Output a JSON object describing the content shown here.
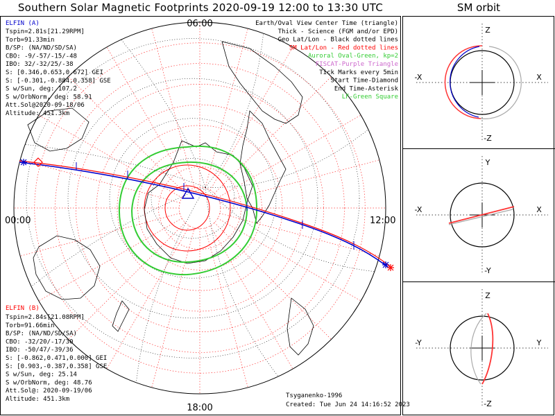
{
  "header": {
    "title": "Southern Solar Magnetic Footprints 2020-09-19 12:00 to 13:30 UTC",
    "orbit_title": "SM orbit"
  },
  "clock": {
    "top": "06:00",
    "left": "00:00",
    "right": "12:00",
    "bottom": "18:00"
  },
  "legend": {
    "items": [
      {
        "text": "Earth/Oval View Center Time (triangle)",
        "color": "#000000"
      },
      {
        "text": "Thick - Science (FGM and/or EPD)",
        "color": "#000000"
      },
      {
        "text": "Geo Lat/Lon - Black dotted lines",
        "color": "#000000"
      },
      {
        "text": "SM Lat/Lon - Red dotted lines",
        "color": "#ff0000"
      },
      {
        "text": "Auroral Oval-Green, kp=2",
        "color": "#33cc33"
      },
      {
        "text": "FISCAT-Purple Triangle",
        "color": "#cc66cc"
      },
      {
        "text": "Tick Marks every 5min",
        "color": "#000000"
      },
      {
        "text": "Start Time-Diamond",
        "color": "#000000"
      },
      {
        "text": "End Time-Asterisk",
        "color": "#000000"
      },
      {
        "text": "LF-Green Square",
        "color": "#33cc33"
      }
    ]
  },
  "elfin_a": {
    "name": "ELFIN (A)",
    "color": "#0000cc",
    "lines": [
      "Tspin=2.81s[21.29RPM]",
      "Torb=91.33min",
      "B/SP: (NA/ND/SD/SA)",
      "CBO: -9/-57/-15/-48",
      "IBO: 32/-32/25/-38",
      "S: [0.346,0.653,0.672] GEI",
      "S: [-0.301,-0.884,0.358] GSE",
      "S w/Sun, deg: 107.2",
      "S w/OrbNorm, deg: 58.91",
      "Att.Sol@2020-09-18/06",
      "Altitude: 451.3km"
    ]
  },
  "elfin_b": {
    "name": "ELFIN (B)",
    "color": "#ff0000",
    "lines": [
      "Tspin=2.84s[21.08RPM]",
      "Torb=91.66min",
      "B/SP: (NA/ND/SD/SA)",
      "CBO: -32/20/-17/30",
      "IBO: -50/47/-39/36",
      "S: [-0.862,0.471,0.000] GEI",
      "S: [0.903,-0.387,0.358] GSE",
      "S w/Sun, deg: 25.14",
      "S w/OrbNorm, deg: 48.76",
      "Att.Sol@: 2020-09-19/06",
      "Altitude: 451.3km"
    ]
  },
  "footer": {
    "model": "Tsyganenko-1996",
    "created": "Created: Tue Jun 24 14:16:52 2023"
  },
  "orbit_panels": [
    {
      "top": "Z",
      "bottom": "-Z",
      "left": "-X",
      "right": "X"
    },
    {
      "top": "Y",
      "bottom": "-Y",
      "left": "-X",
      "right": "X"
    },
    {
      "top": "Z",
      "bottom": "-Z",
      "left": "-Y",
      "right": "Y"
    }
  ],
  "chart_data": {
    "type": "polar-map",
    "title": "Southern Solar Magnetic Footprints 2020-09-19 12:00 to 13:30 UTC",
    "hours": [
      "06:00",
      "00:00",
      "12:00",
      "18:00"
    ],
    "sm_latitude_circles_deg": [
      -90,
      -80,
      -70,
      -60,
      -50,
      -40,
      -30,
      -20,
      -10
    ],
    "sm_longitude_spokes_deg": 15,
    "auroral_oval": {
      "kp": 2,
      "color": "#33cc33"
    },
    "series": [
      {
        "name": "ELFIN (A)",
        "color": "#0000cc"
      },
      {
        "name": "ELFIN (B)",
        "color": "#ff0000"
      }
    ]
  }
}
